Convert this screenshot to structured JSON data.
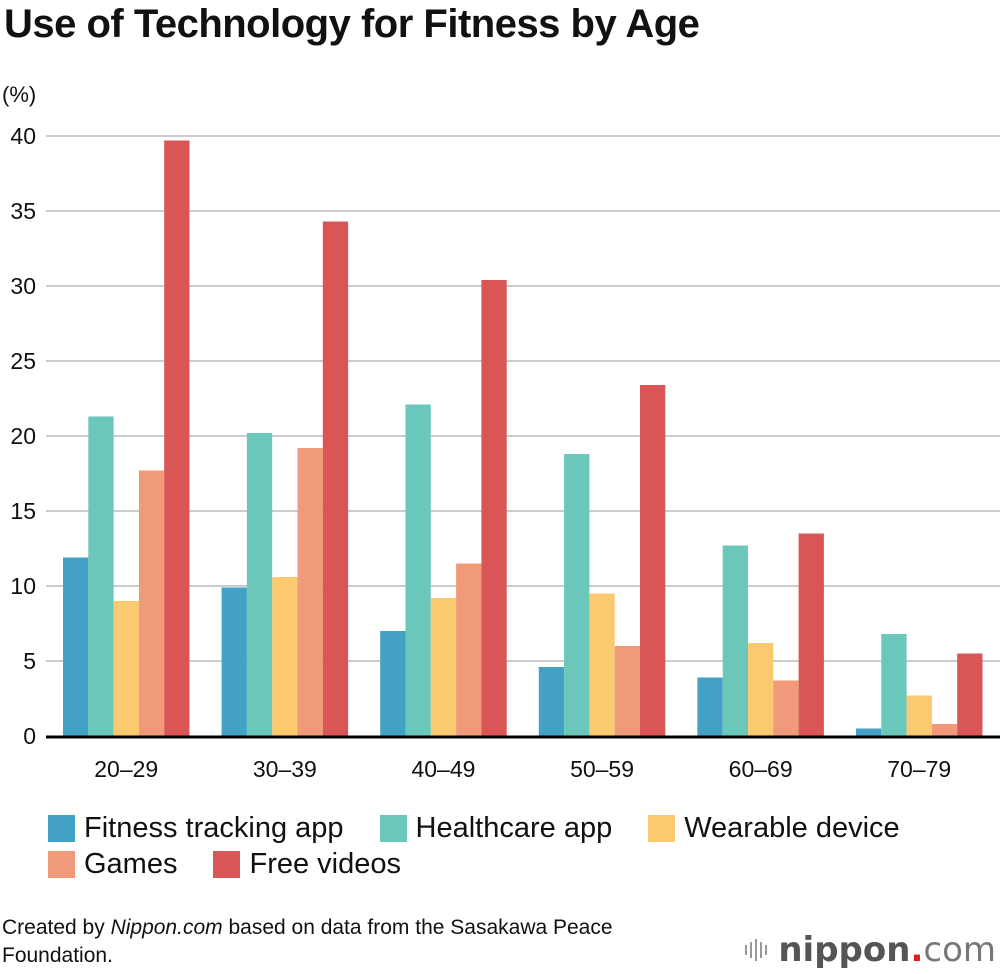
{
  "chart_data": {
    "type": "bar",
    "title": "Use of Technology for Fitness by Age",
    "ylabel": "(%)",
    "xlabel": "",
    "ylim": [
      0,
      40
    ],
    "yticks": [
      0,
      5,
      10,
      15,
      20,
      25,
      30,
      35,
      40
    ],
    "grid": true,
    "legend_position": "bottom",
    "categories": [
      "20–29",
      "30–39",
      "40–49",
      "50–59",
      "60–69",
      "70–79"
    ],
    "series": [
      {
        "name": "Fitness tracking app",
        "color": "#42a1c4",
        "values": [
          11.9,
          9.9,
          7.0,
          4.6,
          3.9,
          0.5
        ]
      },
      {
        "name": "Healthcare app",
        "color": "#6bc7ba",
        "values": [
          21.3,
          20.2,
          22.1,
          18.8,
          12.7,
          6.8
        ]
      },
      {
        "name": "Wearable device",
        "color": "#fbc96f",
        "values": [
          9.0,
          10.6,
          9.2,
          9.5,
          6.2,
          2.7
        ]
      },
      {
        "name": "Games",
        "color": "#f19a79",
        "values": [
          17.7,
          19.2,
          11.5,
          6.0,
          3.7,
          0.8
        ]
      },
      {
        "name": "Free videos",
        "color": "#da5556",
        "values": [
          39.7,
          34.3,
          30.4,
          23.4,
          13.5,
          5.5
        ]
      }
    ]
  },
  "source": {
    "prefix": "Created by ",
    "publisher": "Nippon.com",
    "suffix": " based on data from the Sasakawa Peace Foundation."
  },
  "logo": {
    "name": "nippon",
    "dot": ".",
    "tld": "com"
  }
}
